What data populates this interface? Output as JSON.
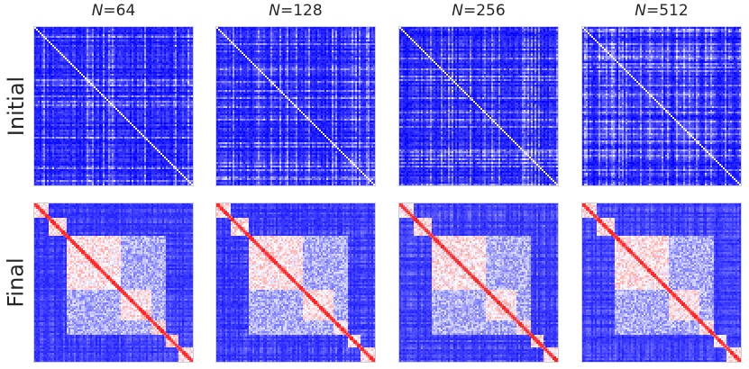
{
  "row_labels": [
    "Initial",
    "Final"
  ],
  "columns": [
    {
      "prefix": "N",
      "value": "=64"
    },
    {
      "prefix": "N",
      "value": "=128"
    },
    {
      "prefix": "N",
      "value": "=256"
    },
    {
      "prefix": "N",
      "value": "=512"
    }
  ],
  "colors": {
    "low": "#0000ff",
    "mid": "#ffffff",
    "high": "#ff0000",
    "panel_border": "#cfcfcf",
    "text": "#262626"
  },
  "chart_data": {
    "type": "heatmap",
    "layout": "2x4 grid of correlation-matrix heatmaps",
    "rows": [
      "Initial",
      "Final"
    ],
    "columns": [
      "N=64",
      "N=128",
      "N=256",
      "N=512"
    ],
    "colormap": "bwr",
    "axes_visible": false,
    "grid": false,
    "legend": "none",
    "panels": [
      {
        "row": "Initial",
        "column": "N=64",
        "pattern": "weak diagonal, unstructured blue background"
      },
      {
        "row": "Initial",
        "column": "N=128",
        "pattern": "weak diagonal, unstructured blue background"
      },
      {
        "row": "Initial",
        "column": "N=256",
        "pattern": "weak diagonal, unstructured blue background"
      },
      {
        "row": "Initial",
        "column": "N=512",
        "pattern": "weak diagonal, unstructured blue background"
      },
      {
        "row": "Final",
        "column": "N=64",
        "pattern": "block-diagonal structure with red diagonal"
      },
      {
        "row": "Final",
        "column": "N=128",
        "pattern": "block-diagonal structure with red diagonal"
      },
      {
        "row": "Final",
        "column": "N=256",
        "pattern": "block-diagonal structure with red diagonal"
      },
      {
        "row": "Final",
        "column": "N=512",
        "pattern": "block-diagonal structure with red diagonal"
      }
    ]
  }
}
